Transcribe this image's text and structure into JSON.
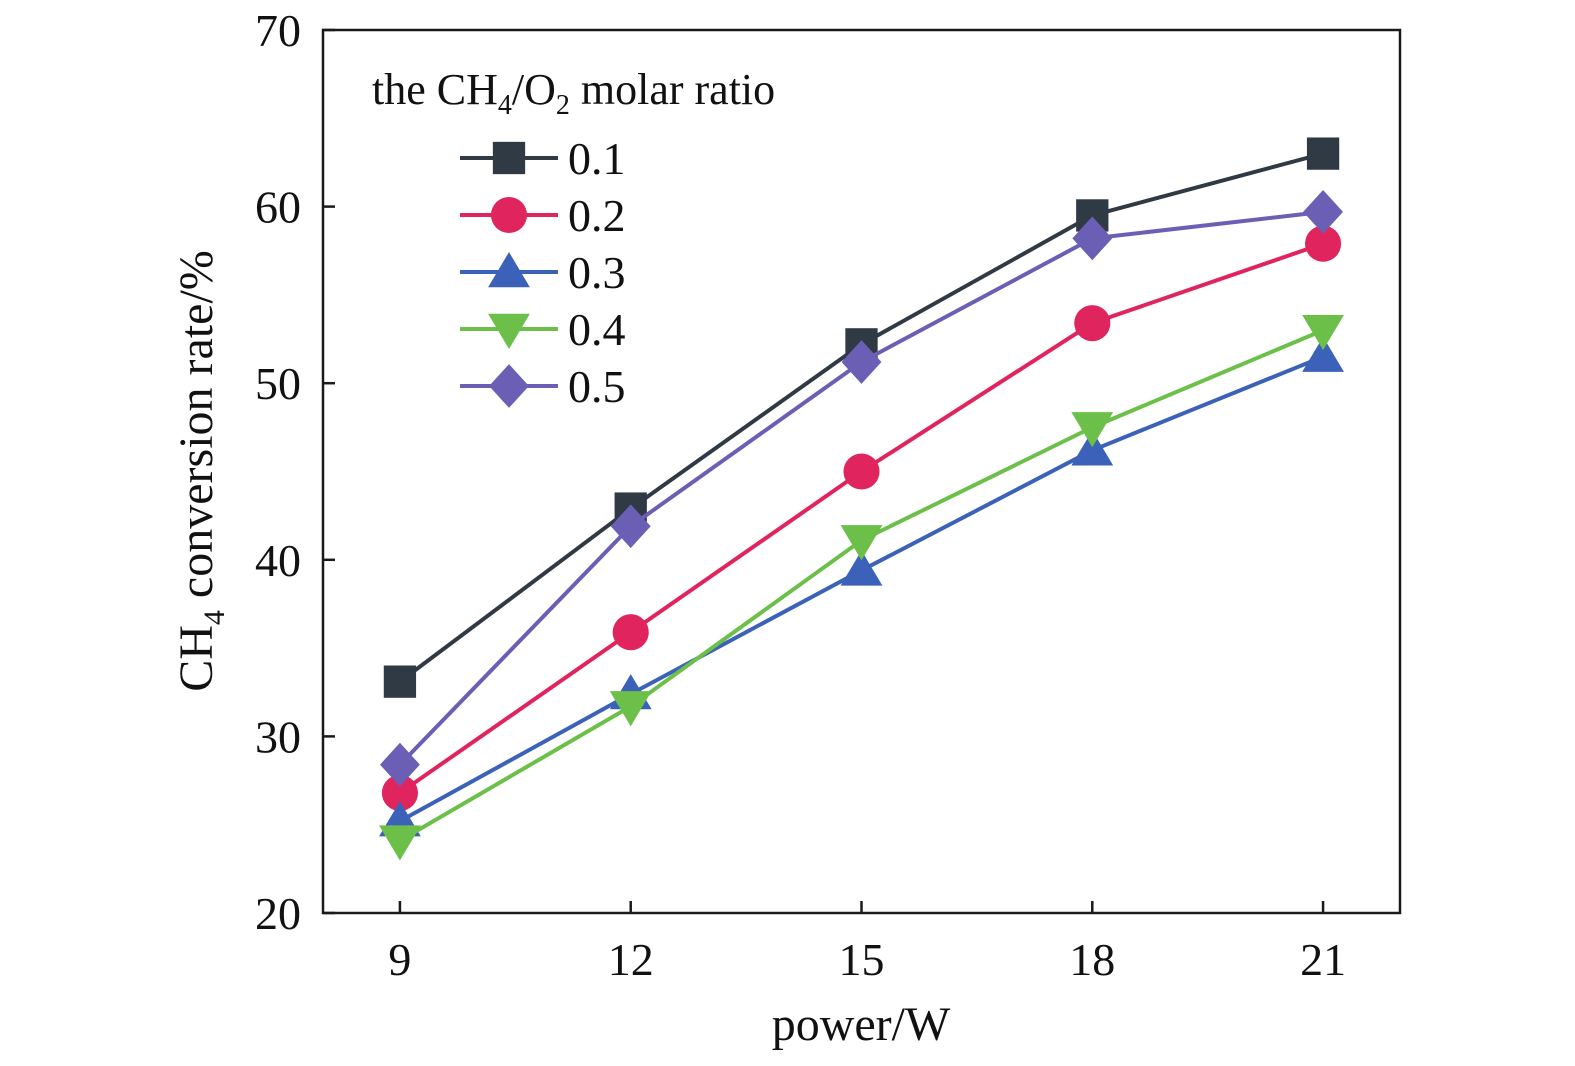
{
  "chart_data": {
    "type": "line",
    "xlabel": "power/W",
    "ylabel": {
      "prefix": "CH",
      "sub": "4",
      "suffix": " conversion rate/%"
    },
    "x": [
      9,
      12,
      15,
      18,
      21
    ],
    "xticks": [
      "9",
      "12",
      "15",
      "18",
      "21"
    ],
    "xlim": [
      8,
      22
    ],
    "yticks": [
      "20",
      "30",
      "40",
      "50",
      "60",
      "70"
    ],
    "ylim": [
      20,
      70
    ],
    "grid": false,
    "legend": {
      "placement": "top-left",
      "title": {
        "part1": "the CH",
        "sub1": "4",
        "part2": "/O",
        "sub2": "2",
        "part3": " molar ratio"
      }
    },
    "series": [
      {
        "name": "0.1",
        "marker": "square",
        "color": "#2f3a45",
        "values": [
          33.1,
          42.9,
          52.2,
          59.5,
          63.0
        ]
      },
      {
        "name": "0.2",
        "marker": "circle",
        "color": "#e0245e",
        "values": [
          26.8,
          35.9,
          45.0,
          53.4,
          57.9
        ]
      },
      {
        "name": "0.3",
        "marker": "triangle-up",
        "color": "#3b62b8",
        "values": [
          25.2,
          32.4,
          39.4,
          46.2,
          51.5
        ]
      },
      {
        "name": "0.4",
        "marker": "triangle-down",
        "color": "#6cc04a",
        "values": [
          24.1,
          31.7,
          41.1,
          47.5,
          53.0
        ]
      },
      {
        "name": "0.5",
        "marker": "diamond",
        "color": "#6b5fb5",
        "values": [
          28.4,
          41.9,
          51.2,
          58.2,
          59.7
        ]
      }
    ]
  }
}
